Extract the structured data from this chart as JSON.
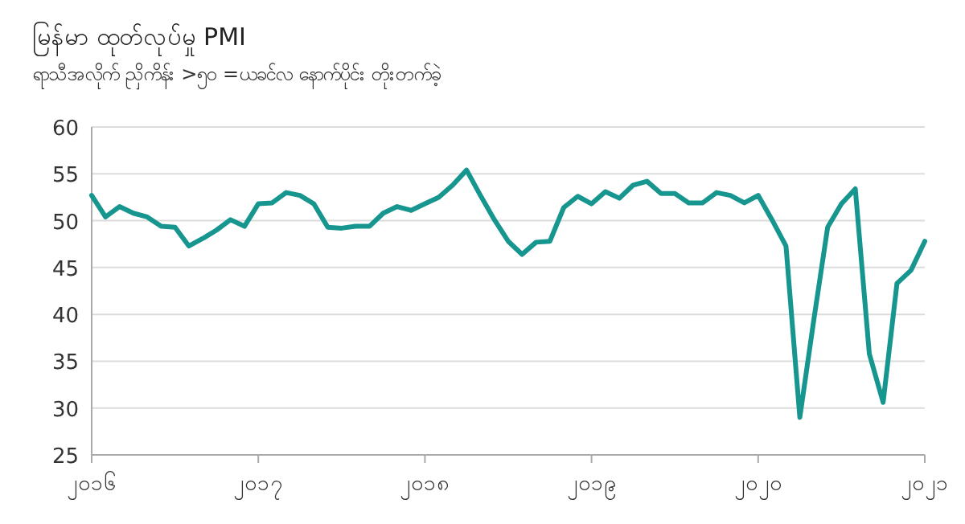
{
  "chart_data": {
    "type": "line",
    "title": "မြန်မာ ထုတ်လုပ်မှု PMI",
    "subtitle": "ရာသီအလိုက် ညှိကိန်း >၅၀ =ယခင်လ နောက်ပိုင်း တိုးတက်ခဲ့",
    "x": [
      2016,
      2016.083,
      2016.167,
      2016.25,
      2016.333,
      2016.417,
      2016.5,
      2016.583,
      2016.667,
      2016.75,
      2016.833,
      2016.917,
      2017,
      2017.083,
      2017.167,
      2017.25,
      2017.333,
      2017.417,
      2017.5,
      2017.583,
      2017.667,
      2017.75,
      2017.833,
      2017.917,
      2018,
      2018.083,
      2018.167,
      2018.25,
      2018.333,
      2018.417,
      2018.5,
      2018.583,
      2018.667,
      2018.75,
      2018.833,
      2018.917,
      2019,
      2019.083,
      2019.167,
      2019.25,
      2019.333,
      2019.417,
      2019.5,
      2019.583,
      2019.667,
      2019.75,
      2019.833,
      2019.917,
      2020,
      2020.083,
      2020.167,
      2020.25,
      2020.333,
      2020.417,
      2020.5,
      2020.583,
      2020.667,
      2020.75,
      2020.833,
      2020.917,
      2021
    ],
    "series": [
      {
        "color": "#17968f",
        "values": [
          52.7,
          50.4,
          51.5,
          50.8,
          50.4,
          49.4,
          49.3,
          47.3,
          48.1,
          49.0,
          50.1,
          49.4,
          51.8,
          51.9,
          53.0,
          52.7,
          51.8,
          49.3,
          49.2,
          49.4,
          49.4,
          50.8,
          51.5,
          51.1,
          51.8,
          52.5,
          53.8,
          55.4,
          52.7,
          50.1,
          47.8,
          46.4,
          47.7,
          47.8,
          51.4,
          52.6,
          51.8,
          53.1,
          52.4,
          53.8,
          54.2,
          52.9,
          52.9,
          51.9,
          51.9,
          53.0,
          52.7,
          51.9,
          52.7,
          50.1,
          47.3,
          29.0,
          39.3,
          49.3,
          51.8,
          53.4,
          35.8,
          30.6,
          43.3,
          44.7,
          47.8
        ]
      }
    ],
    "xlim": [
      2016,
      2021
    ],
    "xticks": [
      {
        "value": 2016,
        "label": "၂၀၁၆"
      },
      {
        "value": 2017,
        "label": "၂၀၁၇"
      },
      {
        "value": 2018,
        "label": "၂၀၁၈"
      },
      {
        "value": 2019,
        "label": "၂၀၁၉"
      },
      {
        "value": 2020,
        "label": "၂၀၂၀"
      },
      {
        "value": 2021,
        "label": "၂၀၂၁"
      }
    ],
    "ylim": [
      25,
      60
    ],
    "yticks": [
      25,
      30,
      35,
      40,
      45,
      50,
      55,
      60
    ],
    "grid": "y"
  }
}
